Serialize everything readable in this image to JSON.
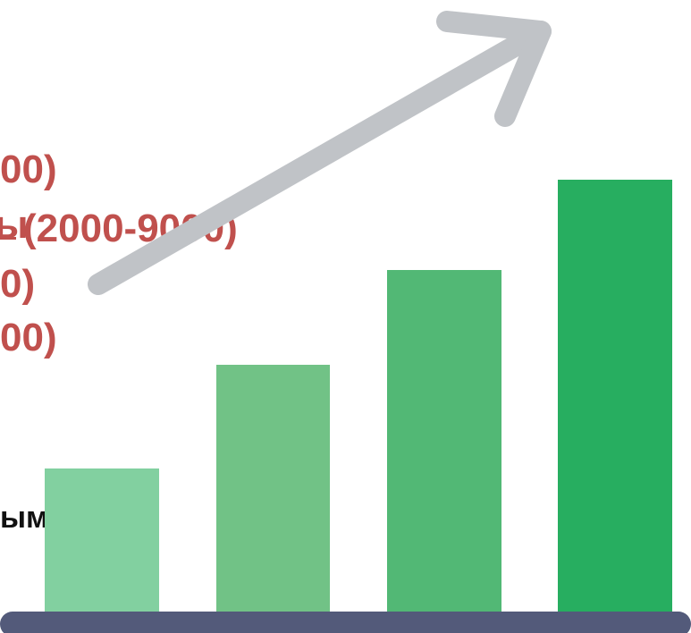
{
  "text_lines": {
    "line1": "00)",
    "line2_prefix": "ы",
    "line2": "(2000-9000)",
    "line3": "0)",
    "line4": "00)",
    "line5": "ым"
  },
  "graphic": {
    "bar_levels": [
      0.32,
      0.55,
      0.76,
      0.96
    ],
    "bar_colors": [
      "#82d0a0",
      "#71c286",
      "#52b875",
      "#27ae60"
    ],
    "baseline_color": "#535a7a",
    "arrow_color": "#c0c3c7",
    "text_color": "#c0504d"
  }
}
